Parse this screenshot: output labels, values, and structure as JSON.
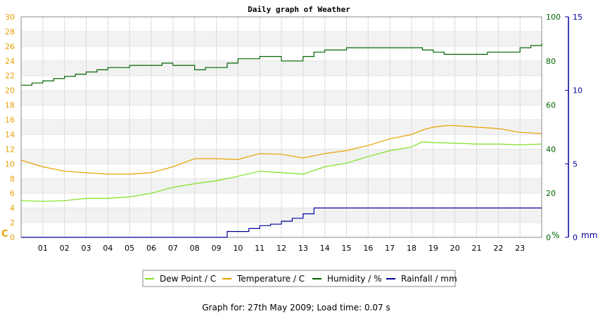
{
  "chart_data": {
    "type": "line",
    "title": "Daily graph of Weather",
    "x_ticks": [
      "01",
      "02",
      "03",
      "04",
      "05",
      "06",
      "07",
      "08",
      "09",
      "10",
      "11",
      "12",
      "13",
      "14",
      "15",
      "16",
      "17",
      "18",
      "19",
      "20",
      "21",
      "22",
      "23"
    ],
    "x_range_hours": [
      0,
      24
    ],
    "axes": {
      "left": {
        "unit_label": "C",
        "ylim": [
          0,
          30
        ],
        "ticks": [
          0,
          2,
          4,
          6,
          8,
          10,
          12,
          14,
          16,
          18,
          20,
          22,
          24,
          26,
          28,
          30
        ],
        "color": "#e8a000"
      },
      "right1": {
        "unit_label": "%",
        "ylim": [
          0,
          100
        ],
        "ticks": [
          0,
          20,
          40,
          60,
          80,
          100
        ],
        "color": "#006400"
      },
      "right2": {
        "unit_label": "mm",
        "ylim": [
          0,
          15
        ],
        "ticks": [
          0,
          5,
          10,
          15
        ],
        "color": "#000099"
      }
    },
    "grid": true,
    "legend_position": "bottom",
    "series": [
      {
        "name": "Dew Point / C",
        "axis": "left",
        "color": "#7fe020",
        "x": [
          0,
          1,
          2,
          3,
          4,
          5,
          6,
          7,
          8,
          9,
          10,
          11,
          12,
          13,
          14,
          15,
          16,
          17,
          18,
          18.5,
          19,
          20,
          21,
          22,
          23,
          24
        ],
        "y": [
          5.0,
          4.9,
          5.0,
          5.3,
          5.3,
          5.5,
          6.0,
          6.8,
          7.3,
          7.7,
          8.3,
          9.0,
          8.8,
          8.6,
          9.6,
          10.1,
          11.0,
          11.8,
          12.3,
          13.0,
          12.9,
          12.8,
          12.7,
          12.7,
          12.6,
          12.7
        ]
      },
      {
        "name": "Temperature / C",
        "axis": "left",
        "color": "#e8a000",
        "x": [
          0,
          1,
          2,
          3,
          4,
          5,
          6,
          7,
          8,
          9,
          10,
          11,
          12,
          13,
          14,
          15,
          16,
          17,
          18,
          18.5,
          19,
          19.6,
          20,
          21,
          22,
          23,
          24
        ],
        "y": [
          10.5,
          9.6,
          9.0,
          8.8,
          8.6,
          8.6,
          8.8,
          9.6,
          10.7,
          10.7,
          10.6,
          11.4,
          11.3,
          10.8,
          11.4,
          11.8,
          12.5,
          13.4,
          14.0,
          14.6,
          15.0,
          15.2,
          15.2,
          15.0,
          14.8,
          14.3,
          14.1
        ]
      },
      {
        "name": "Humidity / %",
        "axis": "right1",
        "color": "#006400",
        "x": [
          0,
          0.5,
          1,
          1.5,
          2,
          2.5,
          3,
          3.5,
          4,
          5,
          5.5,
          6.5,
          7,
          8,
          8.5,
          9,
          9.5,
          10,
          11,
          12,
          12.5,
          13,
          13.5,
          14,
          15,
          16,
          17,
          18,
          18.5,
          19,
          19.5,
          20,
          21,
          21.5,
          22,
          23,
          23.5,
          24
        ],
        "y": [
          69,
          70,
          71,
          72,
          73,
          74,
          75,
          76,
          77,
          78,
          78,
          79,
          78,
          76,
          77,
          77,
          79,
          81,
          82,
          80,
          80,
          82,
          84,
          85,
          86,
          86,
          86,
          86,
          85,
          84,
          83,
          83,
          83,
          84,
          84,
          86,
          87,
          88
        ]
      },
      {
        "name": "Rainfall / mm",
        "axis": "right2",
        "color": "#000099",
        "x": [
          0,
          1,
          2,
          3,
          4,
          5,
          6,
          7,
          8,
          9,
          9.5,
          10,
          10.5,
          11,
          11.5,
          12,
          12.5,
          13,
          13.5,
          14,
          15,
          16,
          17,
          18,
          19,
          20,
          21,
          22,
          23,
          24
        ],
        "y": [
          0,
          0,
          0,
          0,
          0,
          0,
          0,
          0,
          0,
          0,
          0.4,
          0.4,
          0.6,
          0.8,
          0.9,
          1.1,
          1.3,
          1.6,
          2.0,
          2.0,
          2.0,
          2.0,
          2.0,
          2.0,
          2.0,
          2.0,
          2.0,
          2.0,
          2.0,
          2.0
        ]
      }
    ]
  },
  "footer": "Graph for: 27th May 2009; Load time: 0.07 s"
}
